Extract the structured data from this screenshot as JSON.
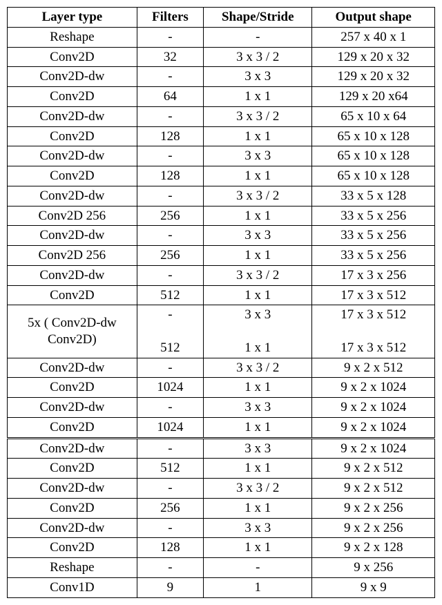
{
  "table": {
    "headers": [
      "Layer type",
      "Filters",
      "Shape/Stride",
      "Output shape"
    ],
    "rows": [
      {
        "c": [
          "Reshape",
          "-",
          "-",
          "257 x 40 x 1"
        ],
        "dbl": false
      },
      {
        "c": [
          "Conv2D",
          "32",
          "3 x 3 / 2",
          "129 x 20 x 32"
        ],
        "dbl": false
      },
      {
        "c": [
          "Conv2D-dw",
          "-",
          "3 x 3",
          "129 x 20 x 32"
        ],
        "dbl": false
      },
      {
        "c": [
          "Conv2D",
          "64",
          "1 x 1",
          "129 x 20 x64"
        ],
        "dbl": false
      },
      {
        "c": [
          "Conv2D-dw",
          "-",
          "3 x 3 / 2",
          "65 x 10 x 64"
        ],
        "dbl": false
      },
      {
        "c": [
          "Conv2D",
          "128",
          "1 x 1",
          "65 x 10 x 128"
        ],
        "dbl": false
      },
      {
        "c": [
          "Conv2D-dw",
          "-",
          "3 x 3",
          "65 x 10 x 128"
        ],
        "dbl": false
      },
      {
        "c": [
          "Conv2D",
          "128",
          "1 x 1",
          "65 x 10 x 128"
        ],
        "dbl": false
      },
      {
        "c": [
          "Conv2D-dw",
          "-",
          "3 x 3 / 2",
          "33 x 5 x 128"
        ],
        "dbl": false
      },
      {
        "c": [
          "Conv2D 256",
          "256",
          "1 x 1",
          "33 x 5 x 256"
        ],
        "dbl": false
      },
      {
        "c": [
          "Conv2D-dw",
          "-",
          "3 x 3",
          "33 x 5 x 256"
        ],
        "dbl": false
      },
      {
        "c": [
          "Conv2D 256",
          "256",
          "1 x 1",
          "33 x 5 x 256"
        ],
        "dbl": false
      },
      {
        "c": [
          "Conv2D-dw",
          "-",
          "3 x 3 / 2",
          "17 x 3 x 256"
        ],
        "dbl": false
      },
      {
        "c": [
          "Conv2D",
          "512",
          "1 x 1",
          "17 x 3 x 512"
        ],
        "dbl": false
      },
      {
        "c": [
          "5x ( Conv2D-dw\nConv2D)",
          "-\n\n512",
          "3 x 3\n\n1 x 1",
          "17 x 3 x 512\n\n17 x 3 x 512"
        ],
        "multi": true,
        "dbl": false
      },
      {
        "c": [
          "Conv2D-dw",
          "-",
          "3 x 3 / 2",
          "9 x 2 x 512"
        ],
        "dbl": false
      },
      {
        "c": [
          "Conv2D",
          "1024",
          "1 x 1",
          "9 x 2 x 1024"
        ],
        "dbl": false
      },
      {
        "c": [
          "Conv2D-dw",
          "-",
          "3 x 3",
          "9 x 2 x 1024"
        ],
        "dbl": false
      },
      {
        "c": [
          "Conv2D",
          "1024",
          "1 x 1",
          "9 x 2 x 1024"
        ],
        "dbl": false
      },
      {
        "c": [
          "Conv2D-dw",
          "-",
          "3 x 3",
          "9 x 2 x 1024"
        ],
        "dbl": true
      },
      {
        "c": [
          "Conv2D",
          "512",
          "1 x 1",
          "9 x 2 x 512"
        ],
        "dbl": false
      },
      {
        "c": [
          "Conv2D-dw",
          "-",
          "3 x 3 / 2",
          "9 x 2 x 512"
        ],
        "dbl": false
      },
      {
        "c": [
          "Conv2D",
          "256",
          "1 x 1",
          "9 x 2 x 256"
        ],
        "dbl": false
      },
      {
        "c": [
          "Conv2D-dw",
          "-",
          "3 x 3",
          "9 x 2 x 256"
        ],
        "dbl": false
      },
      {
        "c": [
          "Conv2D",
          "128",
          "1 x 1",
          "9 x 2 x 128"
        ],
        "dbl": false
      },
      {
        "c": [
          "Reshape",
          "-",
          "-",
          "9 x 256"
        ],
        "dbl": false
      },
      {
        "c": [
          "Conv1D",
          "9",
          "1",
          "9 x 9"
        ],
        "dbl": false
      }
    ]
  }
}
